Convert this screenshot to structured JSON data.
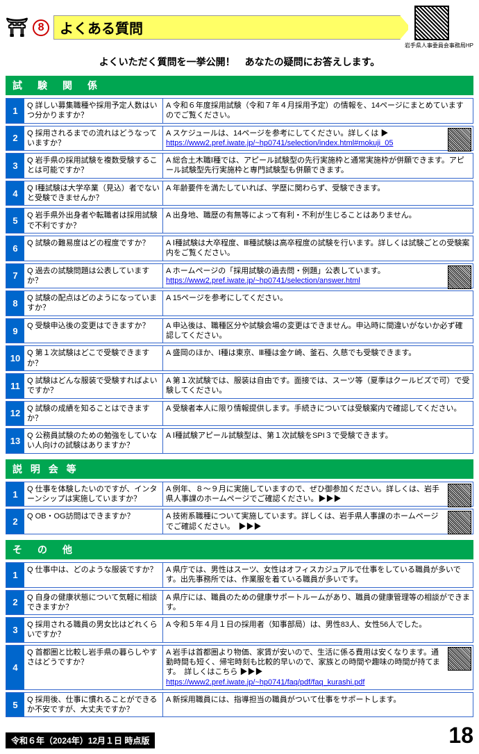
{
  "header": {
    "circle_number": "8",
    "title": "よくある質問",
    "qr_caption": "岩手県人事委員会事務局HP"
  },
  "subtitle": "よくいただく質問を一挙公開！　あなたの疑問にお答えします。",
  "sections": [
    {
      "heading": "試　験　関　係",
      "rows": [
        {
          "n": "1",
          "q": "Q 詳しい募集職種や採用予定人数はいつ分かりますか？",
          "a": "A 令和６年度採用試験（令和７年４月採用予定）の情報を、14ページにまとめていますのでご覧ください。",
          "qr": false
        },
        {
          "n": "2",
          "q": "Q 採用されるまでの流れはどうなっていますか？",
          "a": "A スケジュールは、14ページを参考にしてください。詳しくは ▶",
          "link": "https://www2.pref.iwate.jp/~hp0741/selection/index.html#mokuji_05",
          "qr": true
        },
        {
          "n": "3",
          "q": "Q 岩手県の採用試験を複数受験することは可能ですか？",
          "a": "A 総合土木職Ⅰ種では、アピール試験型の先行実施枠と通常実施枠が併願できます。アピール試験型先行実施枠と専門試験型も併願できます。",
          "qr": false
        },
        {
          "n": "4",
          "q": "Q Ⅰ種試験は大学卒業（見込）者でないと受験できませんか？",
          "a": "A 年齢要件を満たしていれば、学歴に関わらず、受験できます。",
          "qr": false
        },
        {
          "n": "5",
          "q": "Q 岩手県外出身者や転職者は採用試験で不利ですか？",
          "a": "A 出身地、職歴の有無等によって有利・不利が生じることはありません。",
          "qr": false
        },
        {
          "n": "6",
          "q": "Q 試験の難易度はどの程度ですか？",
          "a": "A Ⅰ種試験は大卒程度、Ⅲ種試験は高卒程度の試験を行います。詳しくは試験ごとの受験案内をご覧ください。",
          "qr": false
        },
        {
          "n": "7",
          "q": "Q 過去の試験問題は公表していますか？",
          "a": "A ホームページの「採用試験の過去問・例題」公表しています。",
          "link": "https://www2.pref.iwate.jp/~hp0741/selection/answer.html",
          "qr": true
        },
        {
          "n": "8",
          "q": "Q 試験の配点はどのようになっていますか？",
          "a": "A 15ページを参考にしてください。",
          "qr": false
        },
        {
          "n": "9",
          "q": "Q 受験申込後の変更はできますか？",
          "a": "A 申込後は、職種区分や試験会場の変更はできません。申込時に間違いがないか必ず確認してください。",
          "qr": false
        },
        {
          "n": "10",
          "q": "Q 第１次試験はどこで受験できますか？",
          "a": "A 盛岡のほか、Ⅰ種は東京、Ⅲ種は金ケ崎、釜石、久慈でも受験できます。",
          "qr": false
        },
        {
          "n": "11",
          "q": "Q 試験はどんな服装で受験すればよいですか？",
          "a": "A 第１次試験では、服装は自由です。面接では、スーツ等（夏季はクールビズで可）で受験してください。",
          "qr": false
        },
        {
          "n": "12",
          "q": "Q 試験の成績を知ることはできますか？",
          "a": "A 受験者本人に限り情報提供します。手続きについては受験案内で確認してください。",
          "qr": false
        },
        {
          "n": "13",
          "q": "Q 公務員試験のための勉強をしていない人向けの試験はありますか？",
          "a": "A Ⅰ種試験アピール試験型は、第１次試験をSPI３で受験できます。",
          "qr": false
        }
      ]
    },
    {
      "heading": "説 明 会 等",
      "rows": [
        {
          "n": "1",
          "q": "Q 仕事を体験したいのですが、インターンシップは実施していますか？",
          "a": "A 例年、８～９月に実施していますので、ぜひ御参加ください。詳しくは、岩手県人事課のホームページでご確認ください。▶▶▶",
          "qr": true
        },
        {
          "n": "2",
          "q": "Q OB・OG訪問はできますか？",
          "a": "A 技術系職種について実施しています。詳しくは、岩手県人事課のホームページでご確認ください。　▶▶▶",
          "qr": true
        }
      ]
    },
    {
      "heading": "そ　の　他",
      "rows": [
        {
          "n": "1",
          "q": "Q 仕事中は、どのような服装ですか？",
          "a": "A 県庁では、男性はスーツ、女性はオフィスカジュアルで仕事をしている職員が多いです。出先事務所では、作業服を着ている職員が多いです。",
          "qr": false
        },
        {
          "n": "2",
          "q": "Q 自身の健康状態について気軽に相談できますか？",
          "a": "A 県庁には、職員のための健康サポートルームがあり、職員の健康管理等の相談ができます。",
          "qr": false
        },
        {
          "n": "3",
          "q": "Q 採用される職員の男女比はどれくらいですか？",
          "a": "A 令和５年４月１日の採用者（知事部局）は、男性83人、女性56人でした。",
          "qr": false
        },
        {
          "n": "4",
          "q": "Q 首都圏と比較し岩手県の暮らしやすさはどうですか？",
          "a": "A 岩手は首都圏より物価、家賃が安いので、生活に係る費用は安くなります。通勤時間も短く、帰宅時刻も比較的早いので、家族との時間や趣味の時間が持てます。　詳しくはこちら ▶▶▶",
          "link": "https://www2.pref.iwate.jp/~hp0741/faq/pdf/faq_kurashi.pdf",
          "qr": true
        },
        {
          "n": "5",
          "q": "Q 採用後、仕事に慣れることができるか不安ですが、大丈夫ですか？",
          "a": "A 新採用職員には、指導担当の職員がついて仕事をサポートします。",
          "qr": false
        }
      ]
    }
  ],
  "footer": {
    "date": "令和６年（2024年）12月１日 時点版",
    "page": "18"
  },
  "colors": {
    "section_bg": "#00a651",
    "num_bg": "#0066cc",
    "border": "#3366cc",
    "title_bg": "#ffff66"
  }
}
